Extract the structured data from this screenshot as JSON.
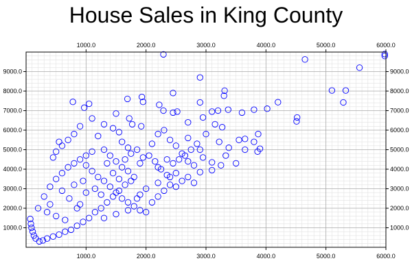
{
  "chart_data": {
    "type": "scatter",
    "title": "House Sales in King County",
    "xlabel": "",
    "ylabel": "",
    "xlim": [
      0,
      6000
    ],
    "ylim": [
      0,
      10000
    ],
    "grid": true,
    "x_ticks": [
      1000,
      2000,
      3000,
      4000,
      5000,
      6000
    ],
    "x_tick_labels": [
      "1000.0",
      "2000.0",
      "3000.0",
      "4000.0",
      "5000.0",
      "6000.0"
    ],
    "y_ticks": [
      1000,
      2000,
      3000,
      4000,
      5000,
      6000,
      7000,
      8000,
      9000
    ],
    "y_tick_labels": [
      "1000.0",
      "2000.0",
      "3000.0",
      "4000.0",
      "5000.0",
      "6000.0",
      "7000.0",
      "8000.0",
      "9000.0"
    ],
    "marker": "open-circle",
    "series_color": "#0000ff",
    "series": [
      {
        "points": [
          [
            2290,
            9880
          ],
          [
            4650,
            9620
          ],
          [
            5560,
            9200
          ],
          [
            5980,
            9900
          ],
          [
            5980,
            9800
          ],
          [
            2900,
            8700
          ],
          [
            3310,
            8020
          ],
          [
            5100,
            8030
          ],
          [
            5330,
            8030
          ],
          [
            5290,
            7420
          ],
          [
            4200,
            7430
          ],
          [
            3300,
            7760
          ],
          [
            2450,
            7900
          ],
          [
            1930,
            7700
          ],
          [
            1690,
            7600
          ],
          [
            1950,
            7450
          ],
          [
            2220,
            7300
          ],
          [
            2900,
            7420
          ],
          [
            3200,
            7000
          ],
          [
            3370,
            7050
          ],
          [
            3800,
            7050
          ],
          [
            4020,
            7100
          ],
          [
            3600,
            6900
          ],
          [
            4520,
            6650
          ],
          [
            4510,
            6450
          ],
          [
            3100,
            6950
          ],
          [
            2950,
            6650
          ],
          [
            2700,
            6400
          ],
          [
            3270,
            6150
          ],
          [
            2520,
            6950
          ],
          [
            1920,
            6200
          ],
          [
            2450,
            6900
          ],
          [
            1720,
            6600
          ],
          [
            1770,
            6300
          ],
          [
            1500,
            6850
          ],
          [
            2290,
            7000
          ],
          [
            3870,
            5800
          ],
          [
            3550,
            5500
          ],
          [
            3650,
            5550
          ],
          [
            3800,
            5400
          ],
          [
            3220,
            5400
          ],
          [
            3380,
            5100
          ],
          [
            3330,
            4700
          ],
          [
            2950,
            4600
          ],
          [
            3900,
            5050
          ],
          [
            3860,
            4900
          ],
          [
            3650,
            5000
          ],
          [
            3100,
            4350
          ],
          [
            2800,
            4200
          ],
          [
            3250,
            4200
          ],
          [
            3500,
            4300
          ],
          [
            2700,
            4400
          ],
          [
            2500,
            3800
          ],
          [
            2900,
            3850
          ],
          [
            3100,
            3950
          ],
          [
            2300,
            6000
          ],
          [
            2200,
            5800
          ],
          [
            2400,
            5500
          ],
          [
            2700,
            5600
          ],
          [
            2100,
            5300
          ],
          [
            2500,
            5200
          ],
          [
            2900,
            5000
          ],
          [
            2600,
            4800
          ],
          [
            2350,
            4500
          ],
          [
            2200,
            4100
          ],
          [
            2400,
            3600
          ],
          [
            2200,
            3300
          ],
          [
            2000,
            3000
          ],
          [
            1900,
            2700
          ],
          [
            1850,
            2500
          ],
          [
            1800,
            3600
          ],
          [
            1900,
            4300
          ],
          [
            1950,
            4600
          ],
          [
            1700,
            5100
          ],
          [
            1600,
            5400
          ],
          [
            1550,
            5900
          ],
          [
            1450,
            6100
          ],
          [
            1300,
            6300
          ],
          [
            1100,
            6600
          ],
          [
            1050,
            7350
          ],
          [
            970,
            7150
          ],
          [
            780,
            7450
          ],
          [
            900,
            6200
          ],
          [
            800,
            5800
          ],
          [
            700,
            5500
          ],
          [
            600,
            5200
          ],
          [
            550,
            5400
          ],
          [
            500,
            4900
          ],
          [
            450,
            4600
          ],
          [
            1200,
            5700
          ],
          [
            1300,
            5000
          ],
          [
            1400,
            4700
          ],
          [
            1500,
            4400
          ],
          [
            1600,
            4100
          ],
          [
            1700,
            3900
          ],
          [
            1750,
            3400
          ],
          [
            1650,
            3200
          ],
          [
            1550,
            2900
          ],
          [
            1450,
            2600
          ],
          [
            1350,
            2300
          ],
          [
            1250,
            2000
          ],
          [
            1150,
            1800
          ],
          [
            1050,
            1500
          ],
          [
            950,
            1300
          ],
          [
            850,
            1100
          ],
          [
            750,
            900
          ],
          [
            650,
            800
          ],
          [
            550,
            650
          ],
          [
            450,
            550
          ],
          [
            350,
            450
          ],
          [
            280,
            350
          ],
          [
            220,
            300
          ],
          [
            160,
            450
          ],
          [
            130,
            600
          ],
          [
            110,
            800
          ],
          [
            90,
            1000
          ],
          [
            80,
            1200
          ],
          [
            70,
            1450
          ],
          [
            200,
            2000
          ],
          [
            300,
            2600
          ],
          [
            400,
            3100
          ],
          [
            500,
            3500
          ],
          [
            600,
            3800
          ],
          [
            700,
            4100
          ],
          [
            800,
            4300
          ],
          [
            900,
            4500
          ],
          [
            1000,
            4700
          ],
          [
            1100,
            4900
          ],
          [
            1000,
            4200
          ],
          [
            1100,
            3900
          ],
          [
            1200,
            3600
          ],
          [
            1300,
            3400
          ],
          [
            1400,
            3100
          ],
          [
            1500,
            2800
          ],
          [
            1600,
            2500
          ],
          [
            1700,
            2300
          ],
          [
            1800,
            2100
          ],
          [
            1900,
            1900
          ],
          [
            2000,
            1800
          ],
          [
            2100,
            2300
          ],
          [
            2200,
            2600
          ],
          [
            2300,
            2900
          ],
          [
            2400,
            3200
          ],
          [
            2500,
            3100
          ],
          [
            2600,
            3400
          ],
          [
            2700,
            3600
          ],
          [
            2800,
            3300
          ],
          [
            1300,
            1500
          ],
          [
            1500,
            1700
          ],
          [
            1700,
            1900
          ],
          [
            900,
            2200
          ],
          [
            1000,
            2800
          ],
          [
            800,
            3200
          ],
          [
            600,
            2900
          ],
          [
            400,
            2200
          ],
          [
            350,
            1800
          ],
          [
            500,
            1600
          ],
          [
            650,
            1400
          ],
          [
            720,
            2500
          ],
          [
            850,
            2000
          ],
          [
            950,
            3400
          ],
          [
            1150,
            3000
          ],
          [
            1250,
            2700
          ],
          [
            1350,
            4300
          ],
          [
            1450,
            3800
          ],
          [
            1550,
            3500
          ],
          [
            1650,
            4500
          ],
          [
            1750,
            4800
          ],
          [
            1850,
            5000
          ],
          [
            2050,
            4700
          ],
          [
            2150,
            4400
          ],
          [
            2250,
            4000
          ],
          [
            2350,
            3700
          ],
          [
            2450,
            4300
          ],
          [
            2550,
            4500
          ],
          [
            2650,
            4700
          ],
          [
            2750,
            5000
          ],
          [
            2850,
            5300
          ],
          [
            3000,
            5800
          ],
          [
            3150,
            6300
          ]
        ]
      }
    ]
  }
}
